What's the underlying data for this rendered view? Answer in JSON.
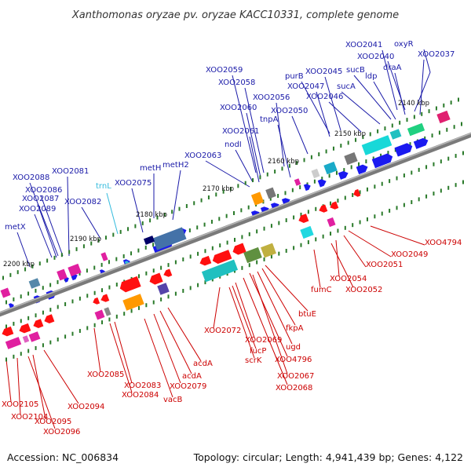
{
  "title": "Xanthomonas oryzae pv. oryzae KACC10331, complete genome",
  "footer": {
    "accession": "Accession: NC_006834",
    "summary": "Topology: circular; Length: 4,941,439 bp; Genes: 4,122"
  },
  "colors": {
    "forward_label": "#1a1aa8",
    "reverse_label": "#cc0000",
    "rna_label": "#33bbdd",
    "axis": "#7a7a7a",
    "tick": "#2a7a2a"
  },
  "scale": [
    {
      "label": "2140 kbp",
      "kbp": 2140
    },
    {
      "label": "2150 kbp",
      "kbp": 2150
    },
    {
      "label": "2160 kbp",
      "kbp": 2160
    },
    {
      "label": "2170 kbp",
      "kbp": 2170
    },
    {
      "label": "2180 kbp",
      "kbp": 2180
    },
    {
      "label": "2190 kbp",
      "kbp": 2190
    },
    {
      "label": "2200 kbp",
      "kbp": 2200
    }
  ],
  "forward_labels": [
    "XOO2041",
    "oxyR",
    "XOO2040",
    "XOO2037",
    "sucB",
    "draA",
    "ldp",
    "purB",
    "XOO2045",
    "XOO2047",
    "sucA",
    "XOO2046",
    "XOO2059",
    "XOO2058",
    "XOO2056",
    "XOO2060",
    "tnpA",
    "XOO2050",
    "XOO2061",
    "nodI",
    "XOO2063",
    "metH",
    "metH2",
    "XOO2075",
    "XOO2088",
    "XOO2081",
    "XOO2086",
    "XOO2087",
    "XOO2082",
    "XOO2089",
    "metX"
  ],
  "rna_labels": [
    "trnL"
  ],
  "reverse_labels": [
    "XOO4794",
    "XOO2049",
    "XOO2051",
    "XOO2054",
    "XOO2052",
    "fumC",
    "btuE",
    "fkpA",
    "ugd",
    "XOO4796",
    "XOO2067",
    "XOO2068",
    "XOO2069",
    "XOO2072",
    "fucP",
    "scrK",
    "acdA",
    "acdA",
    "XOO2079",
    "vacB",
    "XOO2083",
    "XOO2084",
    "XOO2085",
    "XOO2094",
    "XOO2105",
    "XOO2104",
    "XOO2095",
    "XOO2096"
  ]
}
